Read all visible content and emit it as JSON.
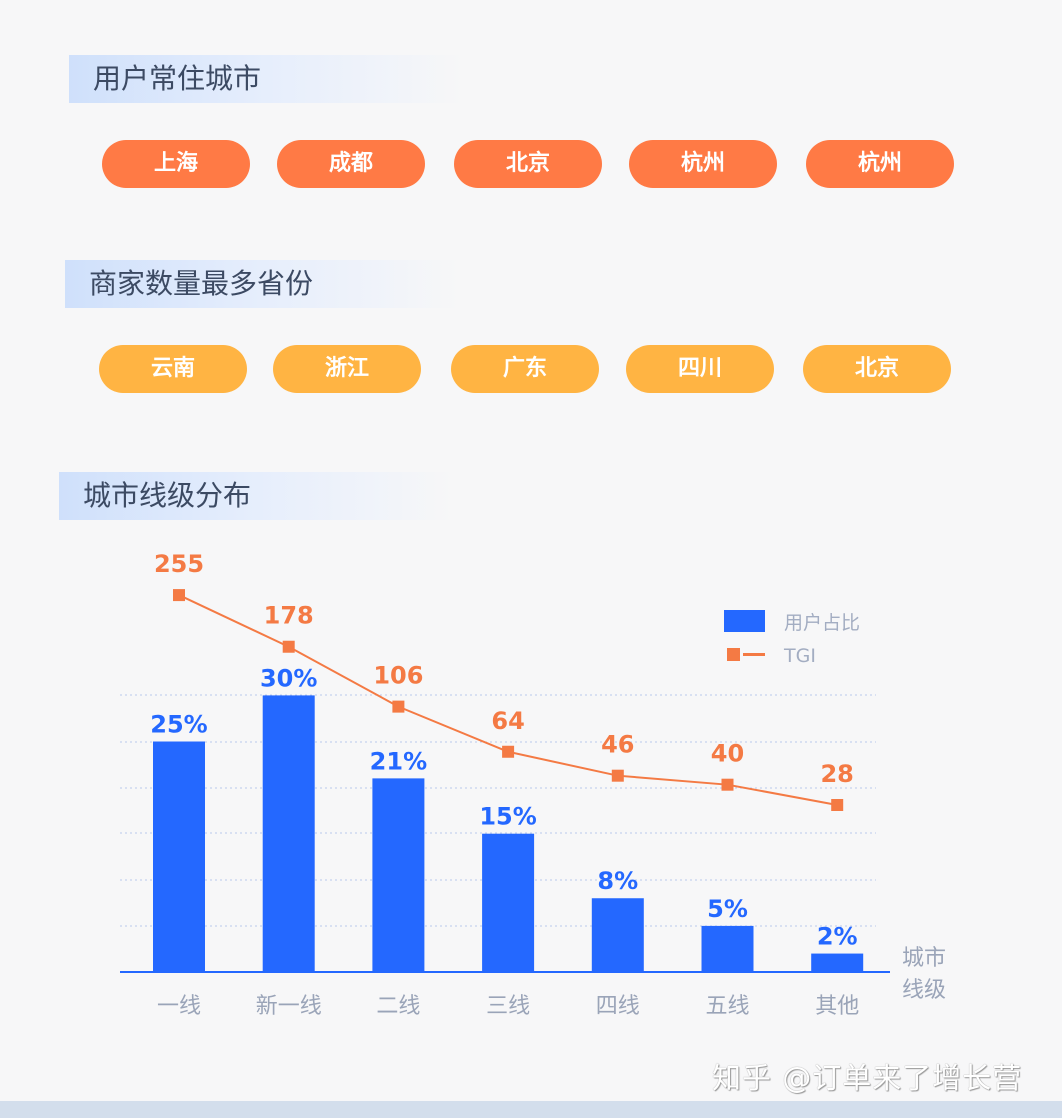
{
  "sections": {
    "cities": {
      "title": "用户常住城市",
      "items": [
        "上海",
        "成都",
        "北京",
        "杭州",
        "杭州"
      ],
      "color": "#ff7a45"
    },
    "provinces": {
      "title": "商家数量最多省份",
      "items": [
        "云南",
        "浙江",
        "广东",
        "四川",
        "北京"
      ],
      "color": "#ffb443"
    },
    "tiers": {
      "title": "城市线级分布"
    }
  },
  "chart_data": {
    "type": "bar+line",
    "categories": [
      "一线",
      "新一线",
      "二线",
      "三线",
      "四线",
      "五线",
      "其他"
    ],
    "xlabel": "城市\n线级",
    "xlabel_lines": [
      "城市",
      "线级"
    ],
    "series": [
      {
        "name": "用户占比",
        "type": "bar",
        "values": [
          25,
          30,
          21,
          15,
          8,
          5,
          2
        ],
        "labels": [
          "25%",
          "30%",
          "21%",
          "15%",
          "8%",
          "5%",
          "2%"
        ],
        "color": "#2468ff"
      },
      {
        "name": "TGI",
        "type": "line",
        "values": [
          255,
          178,
          106,
          64,
          46,
          40,
          28
        ],
        "labels": [
          "255",
          "178",
          "106",
          "64",
          "46",
          "40",
          "28"
        ],
        "color": "#f47a44"
      }
    ],
    "legend": "top-right",
    "grid": true
  },
  "watermark": "知乎 @订单来了增长营"
}
